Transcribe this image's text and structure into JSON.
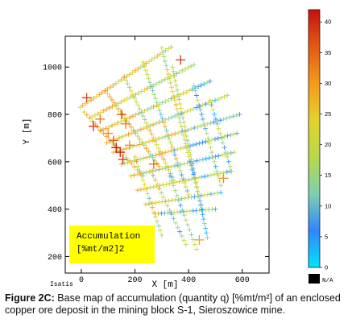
{
  "chart_data": {
    "type": "scatter",
    "xlabel": "X  [m]",
    "ylabel": "Y  [m]",
    "x_ticks": [
      0,
      200,
      400,
      600
    ],
    "y_ticks": [
      200,
      400,
      600,
      800,
      1000
    ],
    "xlim": [
      -60,
      700
    ],
    "ylim": [
      130,
      1130
    ],
    "marker": "plus",
    "legend_box": {
      "line1": "Accumulation",
      "line2": "[%mt/m2]2",
      "color": "#ffff00"
    },
    "software_label": "Isatis",
    "colorbar": {
      "min": 0,
      "max": 42,
      "ticks": [
        0,
        5,
        10,
        15,
        20,
        25,
        30,
        35,
        40
      ],
      "na_label": "N/A",
      "na_color": "#000000",
      "colors": [
        "#00e5ff",
        "#2f86ff",
        "#7fd0b0",
        "#b8d84a",
        "#e3d22a",
        "#f59a1a",
        "#e35a10",
        "#c81010"
      ]
    },
    "sampling_lines": [
      {
        "from": [
          -5,
          830
        ],
        "to": [
          335,
          1085
        ],
        "samples": 34
      },
      {
        "from": [
          40,
          790
        ],
        "to": [
          420,
          1010
        ],
        "samples": 36
      },
      {
        "from": [
          70,
          730
        ],
        "to": [
          480,
          940
        ],
        "samples": 38
      },
      {
        "from": [
          95,
          680
        ],
        "to": [
          545,
          880
        ],
        "samples": 40
      },
      {
        "from": [
          120,
          640
        ],
        "to": [
          590,
          800
        ],
        "samples": 40
      },
      {
        "from": [
          150,
          590
        ],
        "to": [
          580,
          720
        ],
        "samples": 38
      },
      {
        "from": [
          185,
          540
        ],
        "to": [
          570,
          640
        ],
        "samples": 34
      },
      {
        "from": [
          210,
          480
        ],
        "to": [
          555,
          560
        ],
        "samples": 30
      },
      {
        "from": [
          240,
          420
        ],
        "to": [
          520,
          470
        ],
        "samples": 24
      },
      {
        "from": [
          275,
          380
        ],
        "to": [
          500,
          400
        ],
        "samples": 20
      },
      {
        "from": [
          10,
          810
        ],
        "to": [
          230,
          540
        ],
        "samples": 22
      },
      {
        "from": [
          90,
          900
        ],
        "to": [
          290,
          580
        ],
        "samples": 26
      },
      {
        "from": [
          160,
          960
        ],
        "to": [
          345,
          520
        ],
        "samples": 30
      },
      {
        "from": [
          230,
          1020
        ],
        "to": [
          400,
          460
        ],
        "samples": 34
      },
      {
        "from": [
          300,
          1080
        ],
        "to": [
          450,
          400
        ],
        "samples": 38
      },
      {
        "from": [
          340,
          1000
        ],
        "to": [
          470,
          280
        ],
        "samples": 38
      },
      {
        "from": [
          420,
          920
        ],
        "to": [
          520,
          500
        ],
        "samples": 22
      },
      {
        "from": [
          480,
          860
        ],
        "to": [
          560,
          560
        ],
        "samples": 16
      },
      {
        "from": [
          200,
          620
        ],
        "to": [
          300,
          290
        ],
        "samples": 18
      },
      {
        "from": [
          260,
          560
        ],
        "to": [
          390,
          250
        ],
        "samples": 18
      },
      {
        "from": [
          330,
          540
        ],
        "to": [
          430,
          230
        ],
        "samples": 16
      }
    ],
    "high_value_samples": [
      {
        "x": 20,
        "y": 870,
        "value": 38
      },
      {
        "x": 45,
        "y": 750,
        "value": 40
      },
      {
        "x": 70,
        "y": 780,
        "value": 34
      },
      {
        "x": 130,
        "y": 660,
        "value": 42
      },
      {
        "x": 145,
        "y": 640,
        "value": 41
      },
      {
        "x": 155,
        "y": 610,
        "value": 40
      },
      {
        "x": 120,
        "y": 690,
        "value": 36
      },
      {
        "x": 165,
        "y": 760,
        "value": 33
      },
      {
        "x": 150,
        "y": 800,
        "value": 38
      },
      {
        "x": 100,
        "y": 720,
        "value": 31
      },
      {
        "x": 180,
        "y": 670,
        "value": 32
      },
      {
        "x": 370,
        "y": 1030,
        "value": 39
      },
      {
        "x": 270,
        "y": 590,
        "value": 35
      },
      {
        "x": 530,
        "y": 530,
        "value": 31
      },
      {
        "x": 440,
        "y": 270,
        "value": 30
      }
    ]
  },
  "caption": {
    "label": "Figure 2C:",
    "text": " Base map of accumulation (quantity q) [%mt/m²] of an enclosed copper ore deposit in the mining block S-1, Sieroszowice mine."
  }
}
